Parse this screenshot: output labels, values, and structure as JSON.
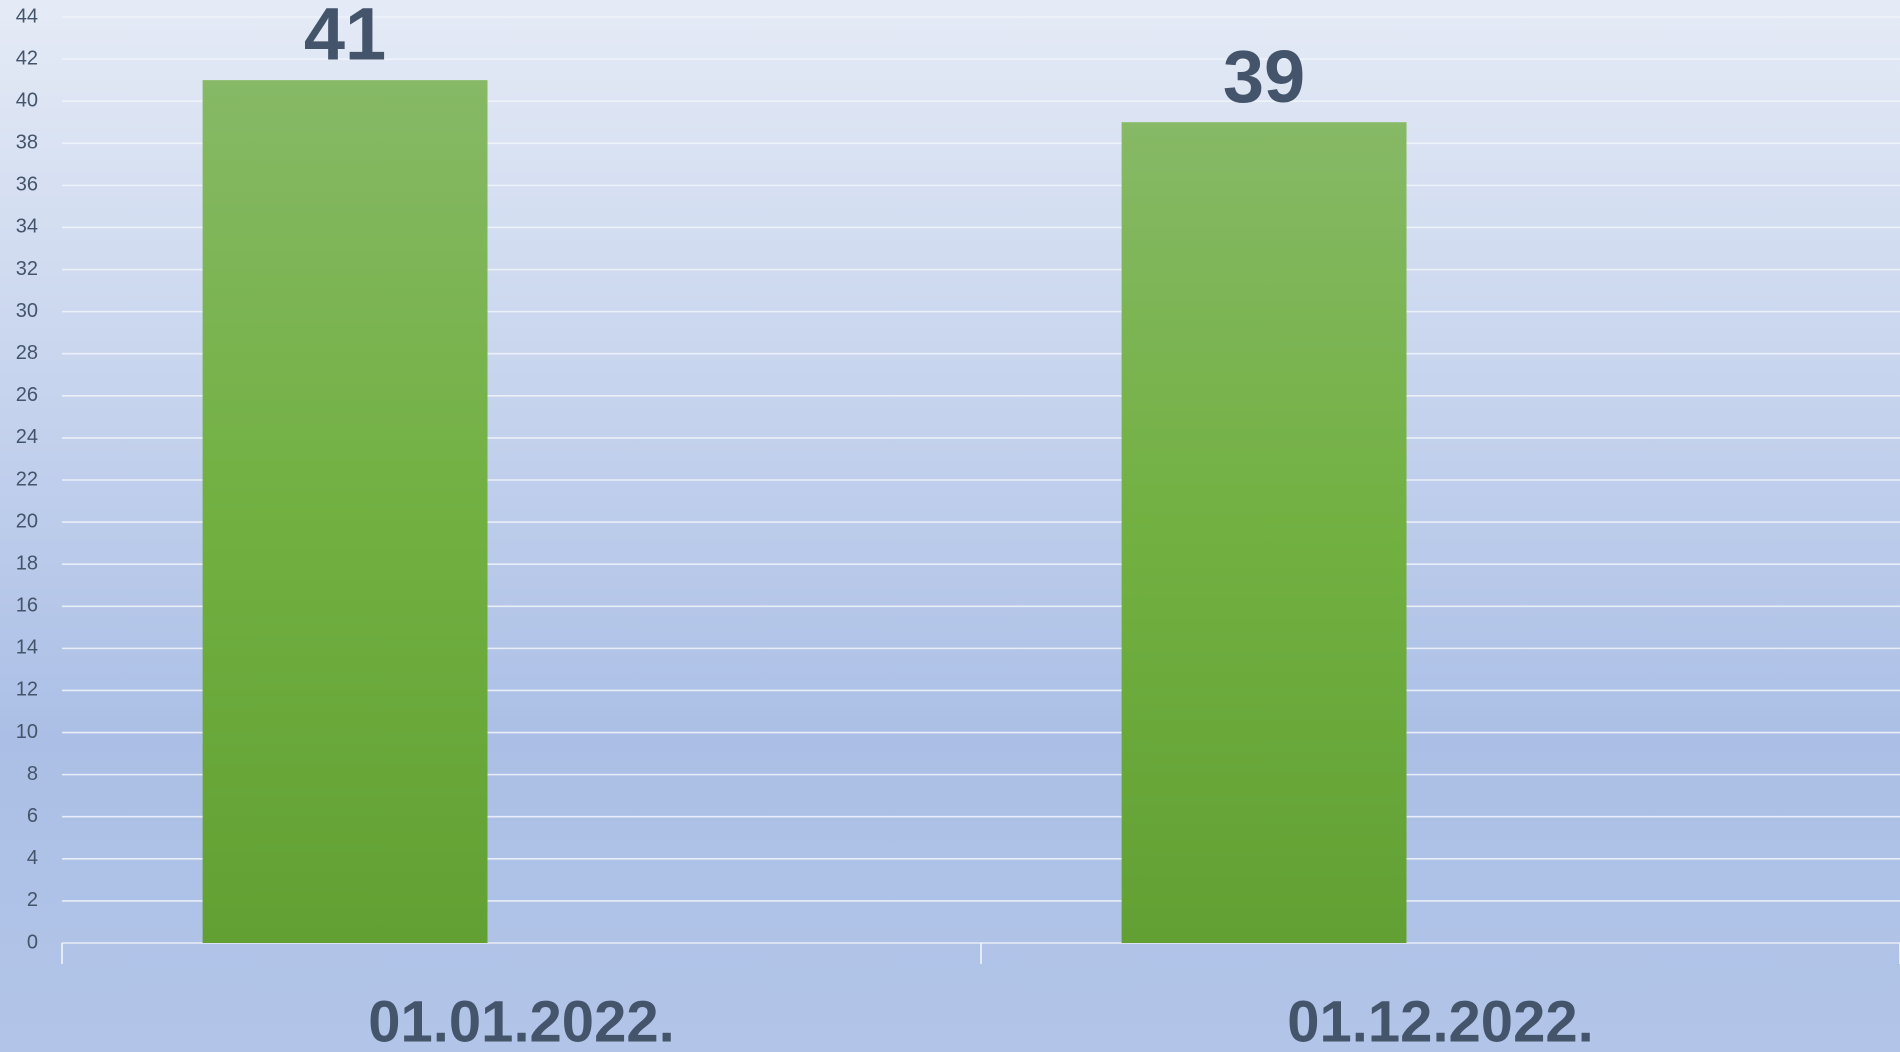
{
  "chart_data": {
    "type": "bar",
    "categories": [
      "01.01.2022.",
      "01.12.2022."
    ],
    "values": [
      41,
      39
    ],
    "color": "#70ad47",
    "ylim": [
      0,
      44
    ],
    "yticks": [
      0,
      2,
      4,
      6,
      8,
      10,
      12,
      14,
      16,
      18,
      20,
      22,
      24,
      26,
      28,
      30,
      32,
      34,
      36,
      38,
      40,
      42,
      44
    ],
    "grid": true
  }
}
